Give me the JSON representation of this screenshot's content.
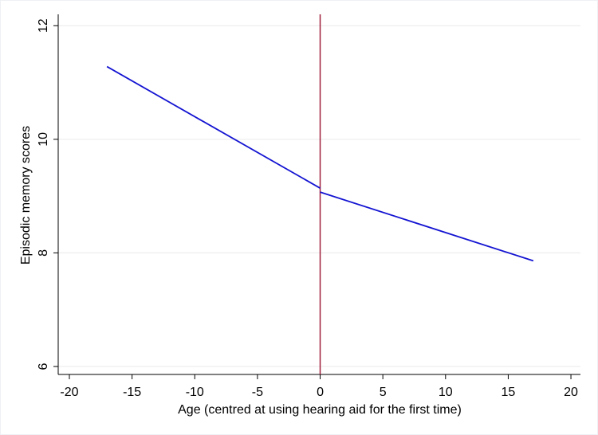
{
  "chart_data": {
    "type": "line",
    "x_label": "Age (centred at using hearing aid for the first time)",
    "y_label": "Episodic memory scores",
    "series": [
      {
        "color": "#1414d2",
        "x": [
          -17,
          0
        ],
        "values": [
          11.28,
          9.14
        ]
      },
      {
        "color": "#1414d2",
        "x": [
          0,
          17
        ],
        "values": [
          9.07,
          7.86
        ]
      }
    ],
    "reference_line": {
      "x": 0,
      "color": "#a01e3c"
    },
    "xlim": [
      -20.89,
      20.76
    ],
    "xticks": [
      -20,
      -15,
      -10,
      -5,
      0,
      5,
      10,
      15,
      20
    ],
    "ylim": [
      5.86,
      12.2
    ],
    "yticks": [
      6,
      8,
      10,
      12
    ],
    "grid": true
  }
}
